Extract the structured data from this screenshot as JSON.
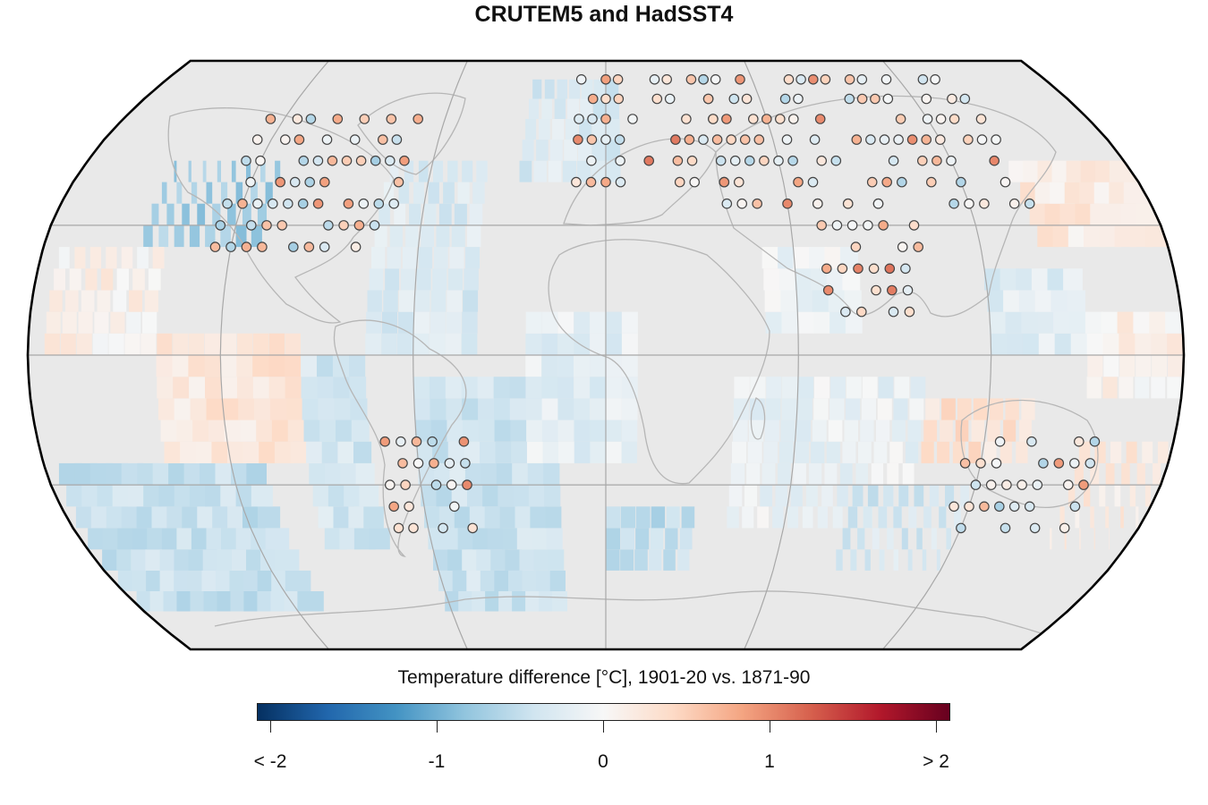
{
  "title": "CRUTEM5 and HadSST4",
  "legend": {
    "title": "Temperature difference [°C], 1901-20 vs. 1871-90",
    "tick_labels": [
      "< -2",
      "-1",
      "0",
      "1",
      "> 2"
    ],
    "range": [
      -2,
      2
    ],
    "colors": [
      "#053061",
      "#2166ac",
      "#4393c3",
      "#92c5de",
      "#d1e5f0",
      "#f7f7f7",
      "#fddbc7",
      "#f4a582",
      "#d6604d",
      "#b2182b",
      "#67001f"
    ]
  },
  "map": {
    "projection": "Robinson",
    "land_color": "#e9e9e9",
    "graticule_color": "#a8a8a8",
    "ocean_grid_type": "HadSST4 gridded anomalies",
    "stations_type": "CRUTEM5 station anomalies"
  }
}
